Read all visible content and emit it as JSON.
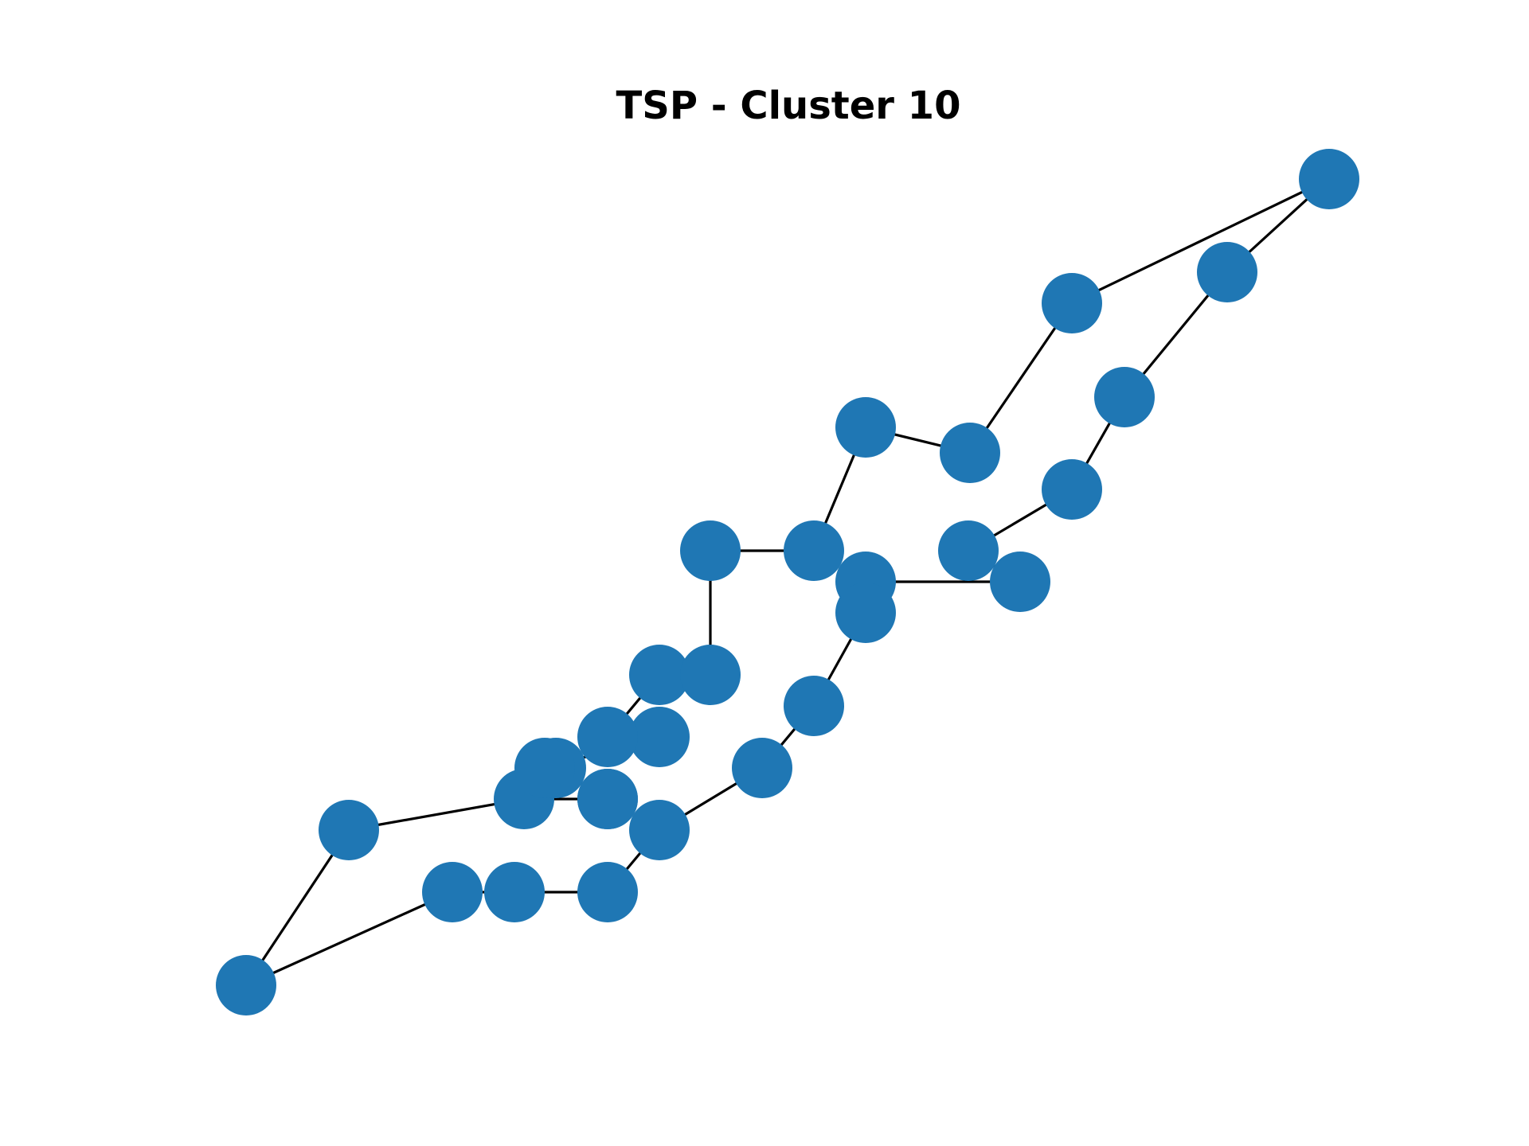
{
  "title": "TSP - Cluster 10",
  "colors": {
    "node": "#1f77b4",
    "edge": "#000000",
    "background": "#ffffff"
  },
  "graph": {
    "type": "tsp-tour",
    "node_count": 30
  }
}
